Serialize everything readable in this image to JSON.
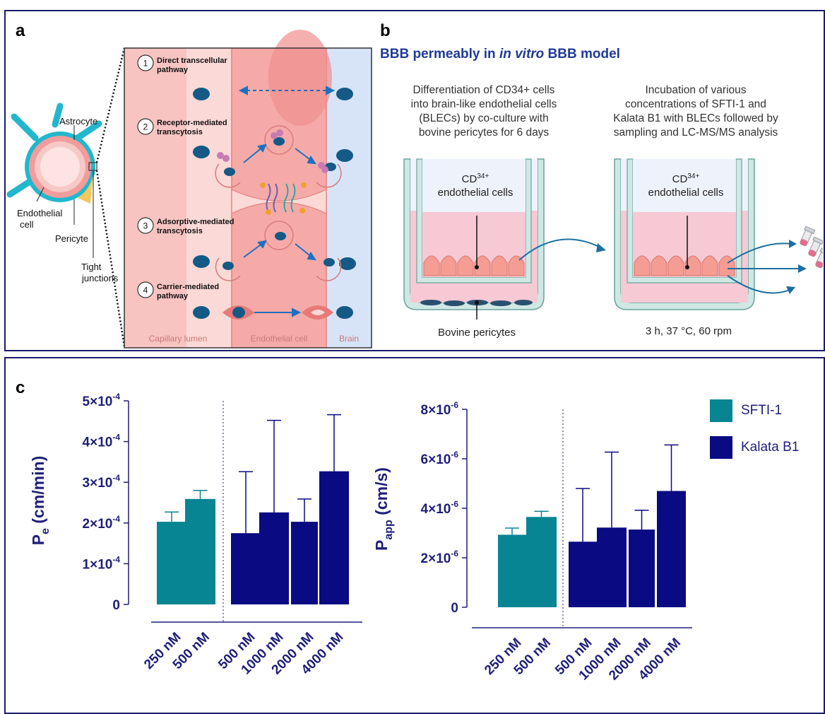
{
  "panel_a": {
    "label": "a",
    "cell_labels": {
      "astrocyte": "Astrocyte",
      "endothelial_1": "Endothelial",
      "endothelial_2": "cell",
      "pericyte": "Pericyte",
      "tight_1": "Tight",
      "tight_2": "junctions"
    },
    "pathways": [
      {
        "num": "1",
        "line1": "Direct transcellular",
        "line2": "pathway"
      },
      {
        "num": "2",
        "line1": "Receptor-mediated",
        "line2": "transcytosis"
      },
      {
        "num": "3",
        "line1": "Adsorptive-mediated",
        "line2": "transcytosis"
      },
      {
        "num": "4",
        "line1": "Carrier-mediated",
        "line2": "pathway"
      }
    ],
    "zones": {
      "lumen": "Capillary lumen",
      "endo": "Endothelial cell",
      "brain": "Brain"
    }
  },
  "panel_b": {
    "label": "b",
    "title_pre": "BBB permeably in ",
    "title_italic": "in vitro",
    "title_post": " BBB model",
    "left_text": [
      "Differentiation of CD34+ cells",
      "into brain-like endothelial cells",
      "(BLECs) by co-culture with",
      "bovine pericytes for 6 days"
    ],
    "right_text": [
      "Incubation of various",
      "concentrations of SFTI-1 and",
      "Kalata B1 with BLECs followed by",
      "sampling and LC-MS/MS analysis"
    ],
    "cd34_base": "CD",
    "cd34_sup": "34+",
    "endo_label": "endothelial cells",
    "pericytes_label": "Bovine pericytes",
    "condition_label": "3 h, 37 °C, 60 rpm"
  },
  "panel_c": {
    "label": "c"
  },
  "colors": {
    "sfti": "#078592",
    "kalata": "#0a0a82",
    "axis": "#1f1f7a",
    "frame": "#1a1a6e"
  },
  "chart_data": [
    {
      "type": "bar",
      "ylabel_main": "P",
      "ylabel_sub": "e",
      "ylabel_unit": " (cm/min)",
      "ylim": [
        0,
        0.0005
      ],
      "yticks": [
        {
          "value": 0,
          "mant": "0",
          "exp": ""
        },
        {
          "value": 0.0001,
          "mant": "1×10",
          "exp": "-4"
        },
        {
          "value": 0.0002,
          "mant": "2×10",
          "exp": "-4"
        },
        {
          "value": 0.0003,
          "mant": "3×10",
          "exp": "-4"
        },
        {
          "value": 0.0004,
          "mant": "4×10",
          "exp": "-4"
        },
        {
          "value": 0.0005,
          "mant": "5×10",
          "exp": "-4"
        }
      ],
      "categories": [
        "250 nM",
        "500 nM",
        "500 nM",
        "1000 nM",
        "2000 nM",
        "4000 nM"
      ],
      "series": [
        {
          "name": "SFTI-1",
          "values": [
            0.000203,
            0.000259,
            null,
            null,
            null,
            null
          ],
          "errors": [
            2.4e-05,
            2.1e-05,
            null,
            null,
            null,
            null
          ]
        },
        {
          "name": "Kalata B1",
          "values": [
            null,
            null,
            0.000175,
            0.000226,
            0.000203,
            0.000327
          ],
          "errors": [
            null,
            null,
            0.000151,
            0.000226,
            5.6e-05,
            0.000139
          ]
        }
      ]
    },
    {
      "type": "bar",
      "ylabel_main": "P",
      "ylabel_sub": "app",
      "ylabel_unit": " (cm/s)",
      "ylim": [
        0,
        8e-06
      ],
      "yticks": [
        {
          "value": 0,
          "mant": "0",
          "exp": ""
        },
        {
          "value": 2e-06,
          "mant": "2×10",
          "exp": "-6"
        },
        {
          "value": 4e-06,
          "mant": "4×10",
          "exp": "-6"
        },
        {
          "value": 6e-06,
          "mant": "6×10",
          "exp": "-6"
        },
        {
          "value": 8e-06,
          "mant": "8×10",
          "exp": "-6"
        }
      ],
      "categories": [
        "250 nM",
        "500 nM",
        "500 nM",
        "1000 nM",
        "2000 nM",
        "4000 nM"
      ],
      "series": [
        {
          "name": "SFTI-1",
          "values": [
            2.93e-06,
            3.65e-06,
            null,
            null,
            null,
            null
          ],
          "errors": [
            2.7e-07,
            2.3e-07,
            null,
            null,
            null,
            null
          ]
        },
        {
          "name": "Kalata B1",
          "values": [
            null,
            null,
            2.65e-06,
            3.22e-06,
            3.14e-06,
            4.7e-06
          ],
          "errors": [
            null,
            null,
            2.15e-06,
            3.05e-06,
            7.8e-07,
            1.86e-06
          ]
        }
      ]
    }
  ],
  "legend": [
    {
      "name": "SFTI-1",
      "color": "#078592"
    },
    {
      "name": "Kalata B1",
      "color": "#0a0a82"
    }
  ]
}
